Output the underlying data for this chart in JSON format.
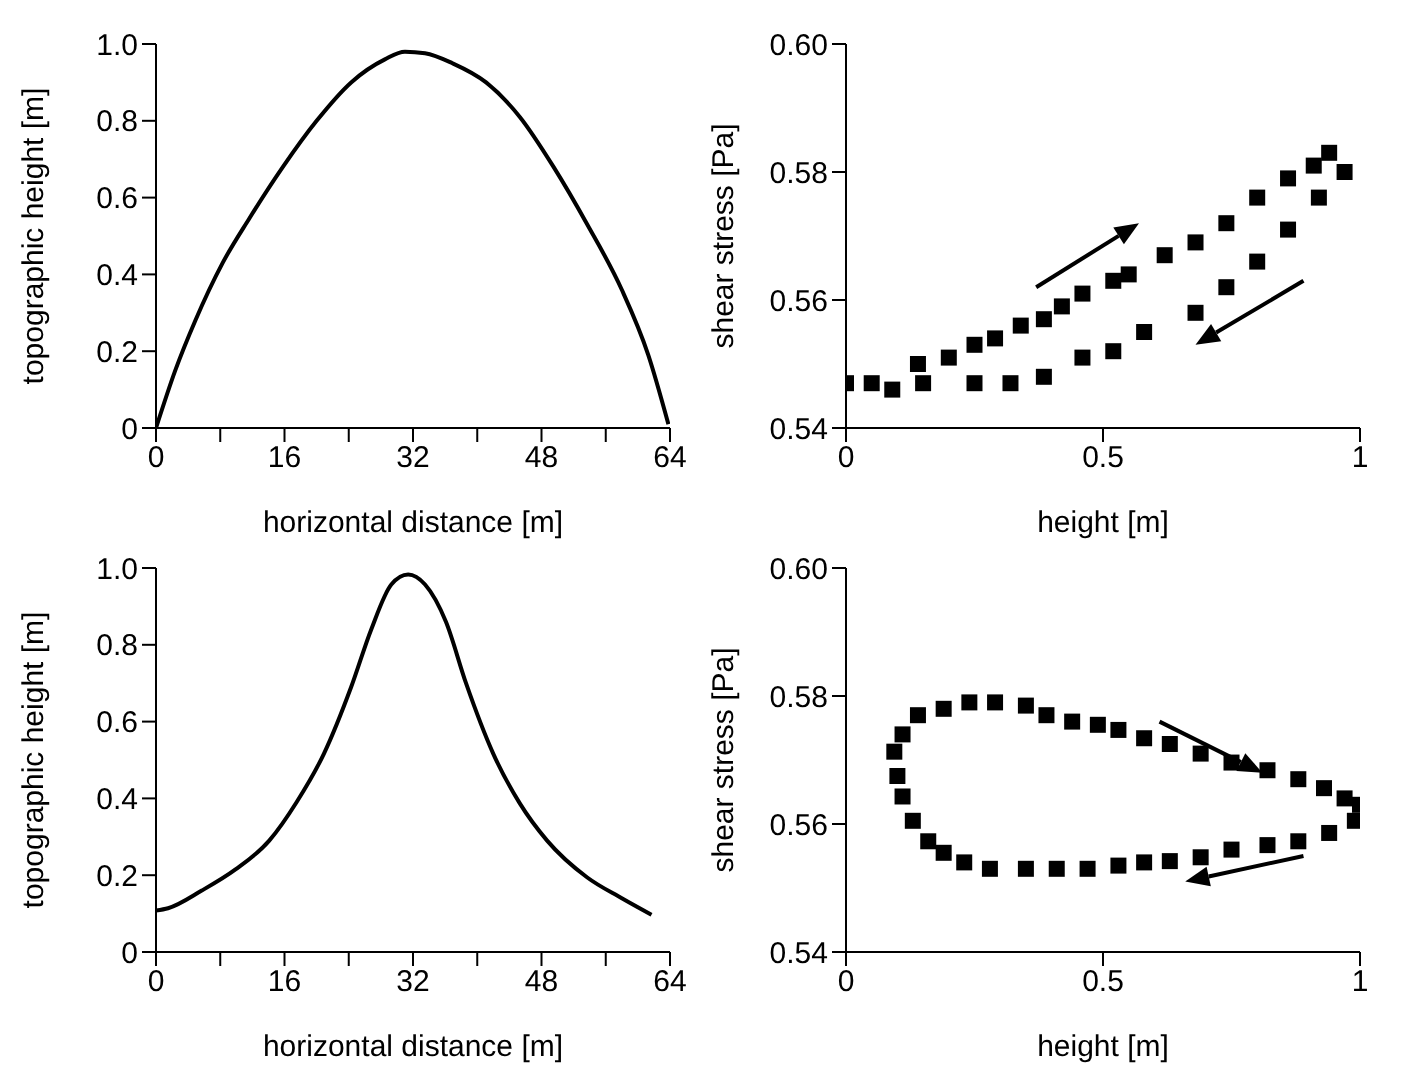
{
  "chart_data": [
    {
      "type": "line",
      "xlabel": "horizontal distance [m]",
      "ylabel": "topographic height [m]",
      "marker": "none",
      "line_style": "solid",
      "xlim": [
        0,
        64
      ],
      "xticks": [
        0,
        {
          "value": 8,
          "label": null
        },
        16,
        {
          "value": 24,
          "label": null
        },
        32,
        {
          "value": 40,
          "label": null
        },
        48,
        {
          "value": 56,
          "label": null
        },
        64
      ],
      "ylim": [
        0,
        1
      ],
      "yticks": [
        0,
        0.2,
        0.4,
        0.6,
        0.8,
        {
          "value": 1,
          "label": "1.0"
        }
      ],
      "series": [
        {
          "color": "#000000",
          "x": [
            0,
            2.4,
            4.9,
            8.3,
            11.6,
            15.8,
            20,
            24.3,
            28.5,
            31,
            33.5,
            36.9,
            41.1,
            45.3,
            49.5,
            53.7,
            58,
            61.3,
            63.8
          ],
          "values": [
            0,
            0.15,
            0.28,
            0.43,
            0.545,
            0.68,
            0.8,
            0.9,
            0.96,
            0.98,
            0.976,
            0.95,
            0.9,
            0.81,
            0.68,
            0.53,
            0.36,
            0.19,
            0.01
          ]
        }
      ]
    },
    {
      "type": "scatter",
      "xlabel": "height [m]",
      "ylabel": "shear stress [Pa]",
      "marker": "square",
      "xlim": [
        0,
        1
      ],
      "xticks": [
        0,
        0.5,
        1
      ],
      "ylim": [
        0.54,
        0.6
      ],
      "yticks": [
        {
          "value": 0.54,
          "label": "0.54"
        },
        {
          "value": 0.56,
          "label": "0.56"
        },
        {
          "value": 0.58,
          "label": "0.58"
        },
        {
          "value": 0.6,
          "label": "0.60"
        }
      ],
      "series": [
        {
          "color": "#000000",
          "x": [
            0,
            0.14,
            0.2,
            0.25,
            0.29,
            0.34,
            0.385,
            0.42,
            0.46,
            0.52,
            0.55,
            0.62,
            0.68,
            0.74,
            0.8,
            0.86,
            0.91,
            0.94
          ],
          "values": [
            0.547,
            0.55,
            0.551,
            0.553,
            0.554,
            0.556,
            0.557,
            0.559,
            0.561,
            0.563,
            0.564,
            0.567,
            0.569,
            0.572,
            0.576,
            0.579,
            0.581,
            0.583
          ]
        },
        {
          "color": "#000000",
          "x": [
            0.97,
            0.92,
            0.86,
            0.8,
            0.74,
            0.68,
            0.58,
            0.52,
            0.46,
            0.385,
            0.32,
            0.25,
            0.15,
            0.09,
            0.05
          ],
          "values": [
            0.58,
            0.576,
            0.571,
            0.566,
            0.562,
            0.558,
            0.555,
            0.552,
            0.551,
            0.548,
            0.547,
            0.547,
            0.547,
            0.546,
            0.547
          ]
        }
      ]
    },
    {
      "type": "line",
      "xlabel": "horizontal distance [m]",
      "ylabel": "topographic height [m]",
      "marker": "none",
      "line_style": "solid",
      "xlim": [
        0,
        64
      ],
      "xticks": [
        0,
        {
          "value": 8,
          "label": null
        },
        16,
        {
          "value": 24,
          "label": null
        },
        32,
        {
          "value": 40,
          "label": null
        },
        48,
        {
          "value": 56,
          "label": null
        },
        64
      ],
      "ylim": [
        0,
        1
      ],
      "yticks": [
        0,
        0.2,
        0.4,
        0.6,
        0.8,
        {
          "value": 1,
          "label": "1.0"
        }
      ],
      "series": [
        {
          "color": "#000000",
          "x": [
            0,
            1.5,
            5.7,
            9.9,
            14.1,
            17.5,
            20.9,
            24.3,
            26.8,
            29.3,
            31.4,
            33.5,
            36.1,
            38.6,
            42,
            45.3,
            48.7,
            53.7,
            58,
            61.7
          ],
          "values": [
            0.108,
            0.114,
            0.16,
            0.215,
            0.29,
            0.39,
            0.516,
            0.69,
            0.84,
            0.957,
            0.983,
            0.957,
            0.86,
            0.7,
            0.516,
            0.387,
            0.29,
            0.194,
            0.14,
            0.097
          ]
        }
      ]
    },
    {
      "type": "scatter",
      "xlabel": "height [m]",
      "ylabel": "shear stress [Pa]",
      "marker": "square",
      "xlim": [
        0,
        1
      ],
      "xticks": [
        0,
        0.5,
        1
      ],
      "ylim": [
        0.54,
        0.6
      ],
      "yticks": [
        {
          "value": 0.54,
          "label": "0.54"
        },
        {
          "value": 0.56,
          "label": "0.56"
        },
        {
          "value": 0.58,
          "label": "0.58"
        },
        {
          "value": 0.6,
          "label": "0.60"
        }
      ],
      "series": [
        {
          "color": "#000000",
          "x": [
            0.094,
            0.11,
            0.14,
            0.19,
            0.24,
            0.29,
            0.35,
            0.39,
            0.44,
            0.49,
            0.53,
            0.58,
            0.63,
            0.69,
            0.75,
            0.82,
            0.88,
            0.93,
            0.97,
            1.0
          ],
          "values": [
            0.5713,
            0.574,
            0.577,
            0.578,
            0.579,
            0.579,
            0.5785,
            0.577,
            0.576,
            0.5755,
            0.5747,
            0.5734,
            0.5725,
            0.571,
            0.5696,
            0.5684,
            0.567,
            0.5656,
            0.564,
            0.563
          ]
        },
        {
          "color": "#000000",
          "x": [
            0.99,
            0.94,
            0.88,
            0.82,
            0.75,
            0.69,
            0.63,
            0.58,
            0.53,
            0.47,
            0.41,
            0.35,
            0.28,
            0.23,
            0.19,
            0.16,
            0.13,
            0.11,
            0.1
          ],
          "values": [
            0.5605,
            0.5586,
            0.5573,
            0.5567,
            0.556,
            0.5548,
            0.5542,
            0.554,
            0.5535,
            0.553,
            0.553,
            0.553,
            0.553,
            0.554,
            0.5555,
            0.5573,
            0.5605,
            0.5643,
            0.5675
          ]
        }
      ]
    }
  ]
}
